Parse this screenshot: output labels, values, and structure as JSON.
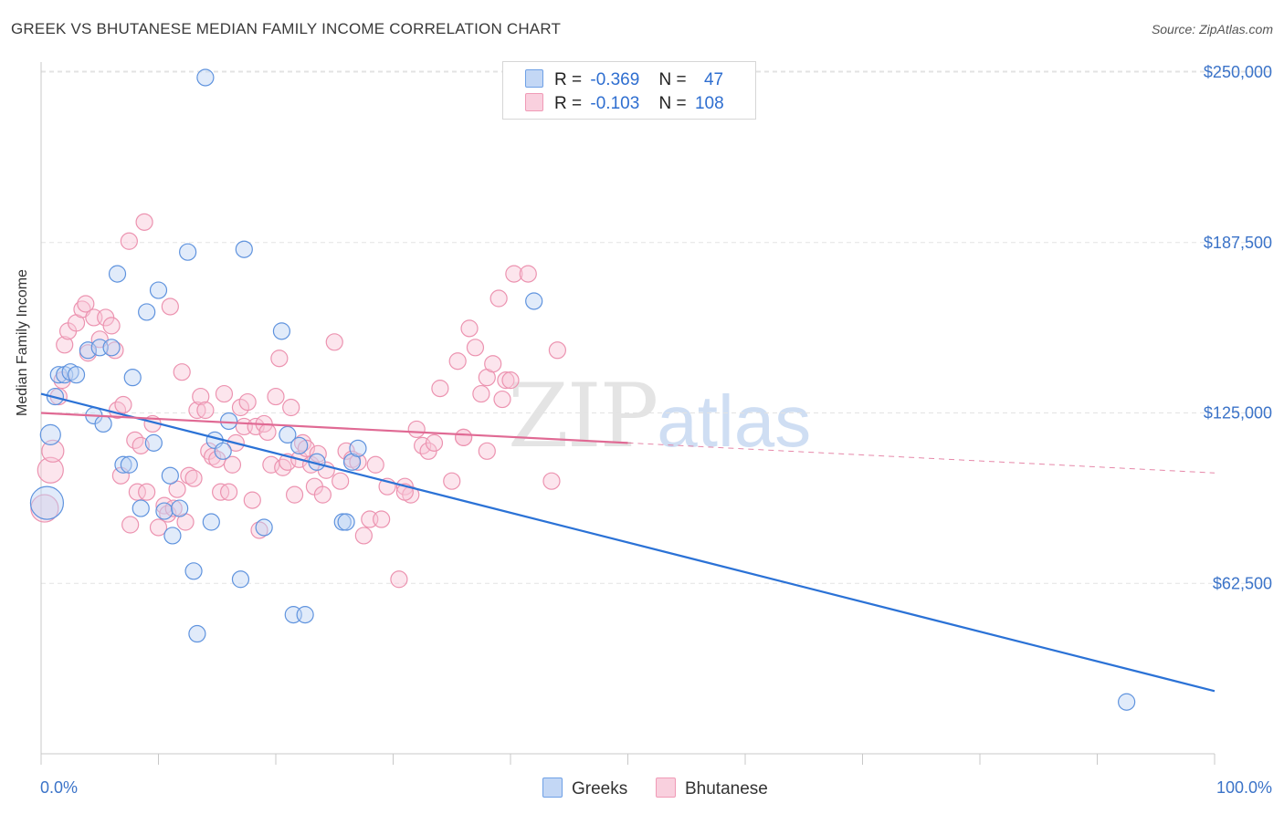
{
  "title": "GREEK VS BHUTANESE MEDIAN FAMILY INCOME CORRELATION CHART",
  "source": "Source: ZipAtlas.com",
  "colors": {
    "greeks": "#6ea0e6",
    "bhutanese": "#f09ab6",
    "greeks_line": "#2b72d6",
    "bhutanese_line": "#e06a94",
    "tick": "#3b73c8"
  },
  "legend": {
    "r_label": "R =",
    "n_label": "N =",
    "greeks_r": "-0.369",
    "greeks_n": "47",
    "bhutanese_r": "-0.103",
    "bhutanese_n": "108"
  },
  "bottom_legend": {
    "greeks": "Greeks",
    "bhutanese": "Bhutanese"
  },
  "watermark": {
    "zip": "ZIP",
    "atlas": "atlas"
  },
  "chart_data": {
    "type": "scatter",
    "title": "GREEK VS BHUTANESE MEDIAN FAMILY INCOME CORRELATION CHART",
    "xlabel": "",
    "ylabel": "Median Family Income",
    "xlim": [
      0,
      100
    ],
    "ylim": [
      0,
      258000
    ],
    "x_tick_labels": [
      "0.0%",
      "100.0%"
    ],
    "y_ticks": [
      62500,
      125000,
      187500,
      250000
    ],
    "y_tick_labels": [
      "$62,500",
      "$125,000",
      "$187,500",
      "$250,000"
    ],
    "grid": "horizontal dashed",
    "legend_position": "top-center",
    "series": [
      {
        "name": "Greeks",
        "color": "#6ea0e6",
        "trend": {
          "x": [
            0,
            100
          ],
          "y": [
            132000,
            23000
          ]
        },
        "points": [
          [
            0.5,
            92000
          ],
          [
            0.8,
            117000
          ],
          [
            1.2,
            131000
          ],
          [
            1.5,
            139000
          ],
          [
            2.0,
            139000
          ],
          [
            2.5,
            140000
          ],
          [
            3.0,
            139000
          ],
          [
            4.0,
            148000
          ],
          [
            4.5,
            124000
          ],
          [
            5.3,
            121000
          ],
          [
            5.0,
            149000
          ],
          [
            6.0,
            149000
          ],
          [
            6.5,
            176000
          ],
          [
            7.0,
            106000
          ],
          [
            7.5,
            106000
          ],
          [
            7.8,
            138000
          ],
          [
            8.5,
            90000
          ],
          [
            9.0,
            162000
          ],
          [
            9.6,
            114000
          ],
          [
            10.0,
            170000
          ],
          [
            10.5,
            89000
          ],
          [
            11.0,
            102000
          ],
          [
            11.2,
            80000
          ],
          [
            11.8,
            90000
          ],
          [
            12.5,
            184000
          ],
          [
            13.0,
            67000
          ],
          [
            13.3,
            44000
          ],
          [
            14.0,
            248000
          ],
          [
            14.5,
            85000
          ],
          [
            14.8,
            115000
          ],
          [
            15.5,
            111000
          ],
          [
            16.0,
            122000
          ],
          [
            17.0,
            64000
          ],
          [
            17.3,
            185000
          ],
          [
            19.0,
            83000
          ],
          [
            20.5,
            155000
          ],
          [
            21.0,
            117000
          ],
          [
            21.5,
            51000
          ],
          [
            22.0,
            113000
          ],
          [
            22.5,
            51000
          ],
          [
            23.5,
            107000
          ],
          [
            25.7,
            85000
          ],
          [
            26.0,
            85000
          ],
          [
            26.5,
            107000
          ],
          [
            27.0,
            112000
          ],
          [
            42.0,
            166000
          ],
          [
            92.5,
            19000
          ]
        ],
        "sizes": {
          "0": 18,
          "1": 11
        }
      },
      {
        "name": "Bhutanese",
        "color": "#f09ab6",
        "trend": {
          "x": [
            0,
            50,
            100
          ],
          "y": [
            125000,
            114000,
            103000
          ],
          "solid_until_x": 50
        },
        "points": [
          [
            0.3,
            90000
          ],
          [
            0.8,
            104000
          ],
          [
            1.0,
            111000
          ],
          [
            1.5,
            131000
          ],
          [
            1.8,
            137000
          ],
          [
            2.0,
            150000
          ],
          [
            2.3,
            155000
          ],
          [
            3.0,
            158000
          ],
          [
            3.5,
            163000
          ],
          [
            3.8,
            165000
          ],
          [
            4.0,
            147000
          ],
          [
            4.5,
            160000
          ],
          [
            5.0,
            152000
          ],
          [
            5.5,
            160000
          ],
          [
            6.0,
            157000
          ],
          [
            6.3,
            148000
          ],
          [
            6.5,
            126000
          ],
          [
            6.8,
            102000
          ],
          [
            7.0,
            128000
          ],
          [
            7.5,
            188000
          ],
          [
            7.6,
            84000
          ],
          [
            8.0,
            115000
          ],
          [
            8.2,
            96000
          ],
          [
            8.5,
            113000
          ],
          [
            8.8,
            195000
          ],
          [
            9.0,
            96000
          ],
          [
            9.5,
            121000
          ],
          [
            10.0,
            83000
          ],
          [
            10.5,
            91000
          ],
          [
            10.8,
            88000
          ],
          [
            11.0,
            164000
          ],
          [
            11.3,
            90000
          ],
          [
            11.6,
            97000
          ],
          [
            12.0,
            140000
          ],
          [
            12.3,
            85000
          ],
          [
            12.6,
            102000
          ],
          [
            13.0,
            101000
          ],
          [
            13.3,
            126000
          ],
          [
            13.6,
            131000
          ],
          [
            14.0,
            126000
          ],
          [
            14.3,
            111000
          ],
          [
            14.6,
            109000
          ],
          [
            15.0,
            108000
          ],
          [
            15.3,
            96000
          ],
          [
            15.6,
            132000
          ],
          [
            16.0,
            96000
          ],
          [
            16.3,
            106000
          ],
          [
            16.6,
            114000
          ],
          [
            17.0,
            127000
          ],
          [
            17.3,
            120000
          ],
          [
            17.6,
            129000
          ],
          [
            18.0,
            93000
          ],
          [
            18.3,
            120000
          ],
          [
            18.6,
            82000
          ],
          [
            19.0,
            121000
          ],
          [
            19.3,
            118000
          ],
          [
            19.6,
            106000
          ],
          [
            20.0,
            131000
          ],
          [
            20.3,
            145000
          ],
          [
            20.6,
            105000
          ],
          [
            21.0,
            107000
          ],
          [
            21.3,
            127000
          ],
          [
            21.6,
            95000
          ],
          [
            22.0,
            108000
          ],
          [
            22.3,
            114000
          ],
          [
            22.6,
            112000
          ],
          [
            23.0,
            106000
          ],
          [
            23.3,
            98000
          ],
          [
            23.6,
            110000
          ],
          [
            24.0,
            95000
          ],
          [
            24.3,
            104000
          ],
          [
            25.0,
            151000
          ],
          [
            25.5,
            100000
          ],
          [
            26.0,
            111000
          ],
          [
            26.5,
            108000
          ],
          [
            27.0,
            107000
          ],
          [
            27.5,
            80000
          ],
          [
            28.0,
            86000
          ],
          [
            28.5,
            106000
          ],
          [
            29.0,
            86000
          ],
          [
            29.5,
            98000
          ],
          [
            30.5,
            64000
          ],
          [
            31.0,
            98000
          ],
          [
            31.5,
            95000
          ],
          [
            32.0,
            119000
          ],
          [
            32.5,
            113000
          ],
          [
            33.0,
            111000
          ],
          [
            33.5,
            114000
          ],
          [
            34.0,
            134000
          ],
          [
            35.0,
            100000
          ],
          [
            35.5,
            144000
          ],
          [
            36.0,
            116000
          ],
          [
            36.5,
            156000
          ],
          [
            37.0,
            149000
          ],
          [
            37.5,
            132000
          ],
          [
            38.0,
            138000
          ],
          [
            38.5,
            143000
          ],
          [
            39.0,
            167000
          ],
          [
            39.3,
            130000
          ],
          [
            39.6,
            137000
          ],
          [
            40.0,
            137000
          ],
          [
            40.3,
            176000
          ],
          [
            38.0,
            111000
          ],
          [
            43.5,
            100000
          ],
          [
            44.0,
            148000
          ],
          [
            41.5,
            176000
          ],
          [
            36.0,
            116000
          ],
          [
            31.0,
            96000
          ]
        ],
        "sizes": {
          "0": 15,
          "1": 14,
          "2": 12
        }
      }
    ]
  }
}
